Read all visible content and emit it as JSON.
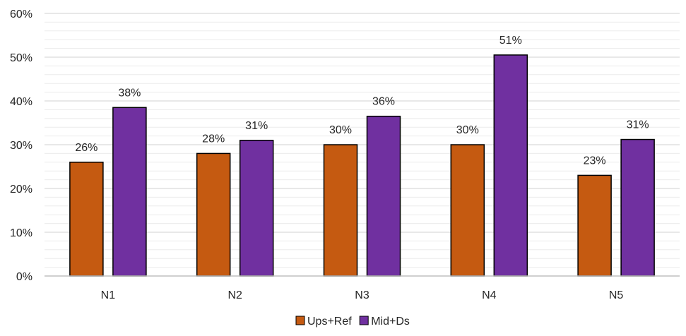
{
  "chart_data": {
    "type": "bar",
    "categories": [
      "N1",
      "N2",
      "N3",
      "N4",
      "N5"
    ],
    "series": [
      {
        "name": "Ups+Ref",
        "color": "#C55A11",
        "values": [
          26,
          28,
          30,
          30,
          23
        ],
        "labels": [
          "26%",
          "28%",
          "30%",
          "30%",
          "23%"
        ]
      },
      {
        "name": "Mid+Ds",
        "color": "#7030A0",
        "values": [
          38.5,
          31,
          36.5,
          50.5,
          31.2
        ],
        "labels": [
          "38%",
          "31%",
          "36%",
          "51%",
          "31%"
        ]
      }
    ],
    "ylim": [
      0,
      60
    ],
    "yticks": [
      "0%",
      "10%",
      "20%",
      "30%",
      "40%",
      "50%",
      "60%"
    ],
    "ytick_values": [
      0,
      10,
      20,
      30,
      40,
      50,
      60
    ],
    "grid": true,
    "legend_position": "bottom",
    "title": "",
    "xlabel": "",
    "ylabel": ""
  }
}
